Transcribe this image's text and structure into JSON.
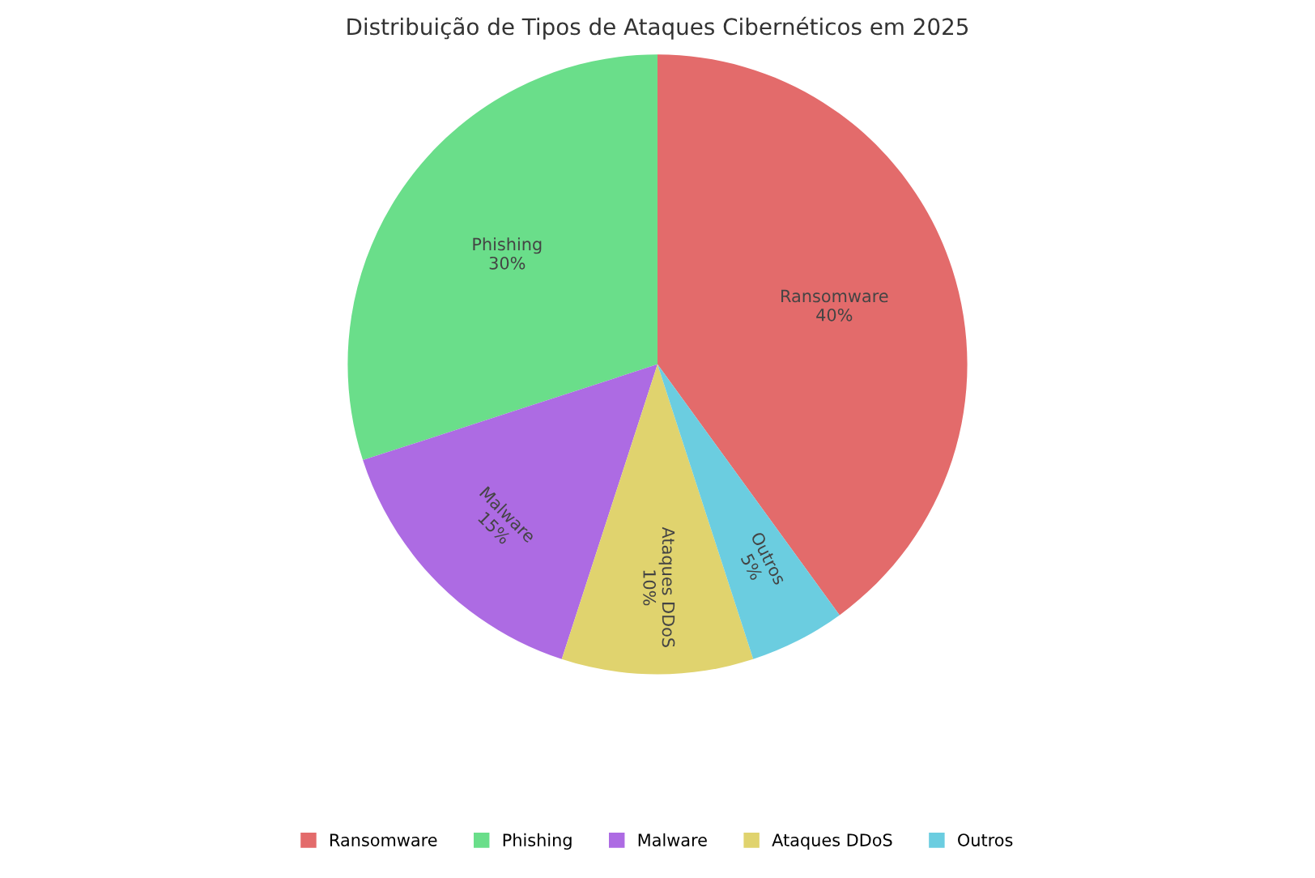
{
  "chart_data": {
    "type": "pie",
    "title": "Distribuição de Tipos de Ataques Cibernéticos em 2025",
    "categories": [
      "Ransomware",
      "Phishing",
      "Malware",
      "Ataques DDoS",
      "Outros"
    ],
    "values": [
      40,
      30,
      15,
      10,
      5
    ],
    "value_labels": [
      "40%",
      "30%",
      "15%",
      "10%",
      "5%"
    ],
    "colors": [
      "#e36b6b",
      "#6ade8a",
      "#ad6be3",
      "#e0d36e",
      "#6bcde0"
    ],
    "legend": "bottom"
  }
}
